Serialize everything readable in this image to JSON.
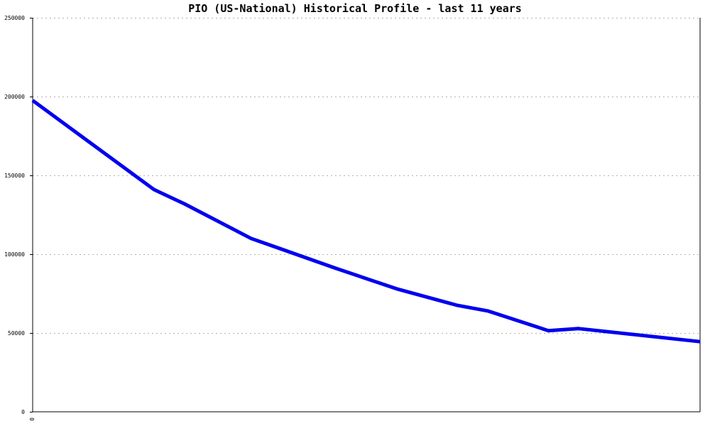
{
  "chart_data": {
    "type": "line",
    "title": "PIO (US-National) Historical Profile - last 11 years",
    "xlabel": "",
    "ylabel": "",
    "ylim": [
      0,
      250000
    ],
    "xlim": [
      0,
      11
    ],
    "y_ticks": [
      0,
      50000,
      100000,
      150000,
      200000,
      250000
    ],
    "y_tick_labels": [
      "0",
      "50000",
      "100000",
      "150000",
      "200000",
      "250000"
    ],
    "x_tick_labels": [
      "0"
    ],
    "grid": true,
    "line_color": "#0000ee",
    "series": [
      {
        "x": [
          0,
          2.0,
          2.5,
          3.6,
          5.0,
          6.0,
          7.0,
          7.5,
          8.5,
          9.0,
          11.0
        ],
        "values": [
          197500,
          141000,
          132000,
          110000,
          91000,
          78000,
          67500,
          64000,
          51500,
          52800,
          44500
        ]
      }
    ]
  }
}
